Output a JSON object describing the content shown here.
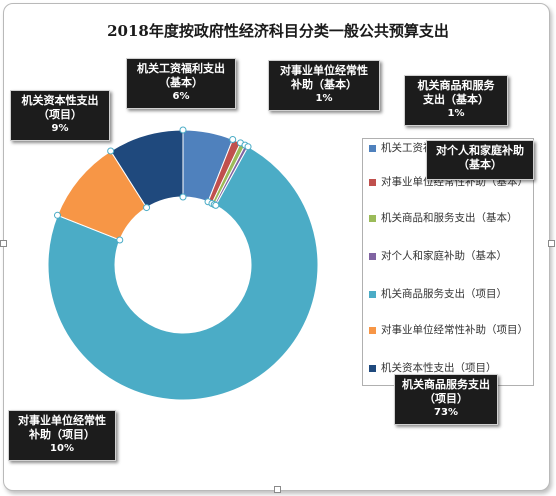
{
  "chart_data": {
    "type": "pie",
    "title": "2018年度按政府性经济科目分类一般公共预算支出",
    "slices": [
      {
        "name": "机关工资福利支出（基本）",
        "value": 6,
        "label": "6%",
        "color": "#4f81bd",
        "callout": "机关工资福利支出（基本）"
      },
      {
        "name": "对事业单位经常性补助（基本）",
        "value": 1,
        "label": "1%",
        "color": "#c0504d",
        "callout": "对事业单位经常性补助（基本）"
      },
      {
        "name": "机关商品和服务支出（基本）",
        "value": 0.6,
        "label": "1%",
        "color": "#9bbb59",
        "callout": "机关商品和服务支出（基本）"
      },
      {
        "name": "对个人和家庭补助（基本）",
        "value": 0.4,
        "label": "",
        "color": "#8064a2",
        "callout": "对个人和家庭补助（基本）"
      },
      {
        "name": "机关商品服务支出（项目）",
        "value": 73,
        "label": "73%",
        "color": "#4bacc6",
        "callout": "机关商品服务支出（项目）"
      },
      {
        "name": "对事业单位经常性补助（项目）",
        "value": 10,
        "label": "10%",
        "color": "#f79646",
        "callout": "对事业单位经常性补助（项目）"
      },
      {
        "name": "机关资本性支出（项目）",
        "value": 9,
        "label": "9%",
        "color": "#1f497d",
        "callout": "机关资本性支出（项目）"
      }
    ],
    "legend_position": "right"
  },
  "callouts": {
    "wage": {
      "line1": "机关工资福利支出",
      "line2": "（基本）",
      "pct": "6%"
    },
    "subsidy_basic": {
      "line1": "对事业单位经常性",
      "line2": "补助（基本）",
      "pct": "1%"
    },
    "goods_basic": {
      "line1": "机关商品和服务",
      "line2": "支出（基本）",
      "pct": "1%"
    },
    "personal_basic": {
      "line1": "对个人和家庭补助",
      "line2": "（基本）",
      "pct": ""
    },
    "capital": {
      "line1": "机关资本性支出",
      "line2": "（项目）",
      "pct": "9%"
    },
    "goods_project": {
      "line1": "机关商品服务支出",
      "line2": "（项目）",
      "pct": "73%"
    },
    "subsidy_project": {
      "line1": "对事业单位经常性",
      "line2": "补助（项目）",
      "pct": "10%"
    }
  },
  "legend": [
    {
      "label": "机关工资福利支出（基本）",
      "color": "#4f81bd"
    },
    {
      "label": "对事业单位经常性补助（基本）",
      "color": "#c0504d"
    },
    {
      "label": "机关商品和服务支出（基本）",
      "color": "#9bbb59"
    },
    {
      "label": "对个人和家庭补助（基本）",
      "color": "#8064a2"
    },
    {
      "label": "机关商品服务支出（项目）",
      "color": "#4bacc6"
    },
    {
      "label": "对事业单位经常性补助（项目）",
      "color": "#f79646"
    },
    {
      "label": "机关资本性支出（项目）",
      "color": "#1f497d"
    }
  ]
}
